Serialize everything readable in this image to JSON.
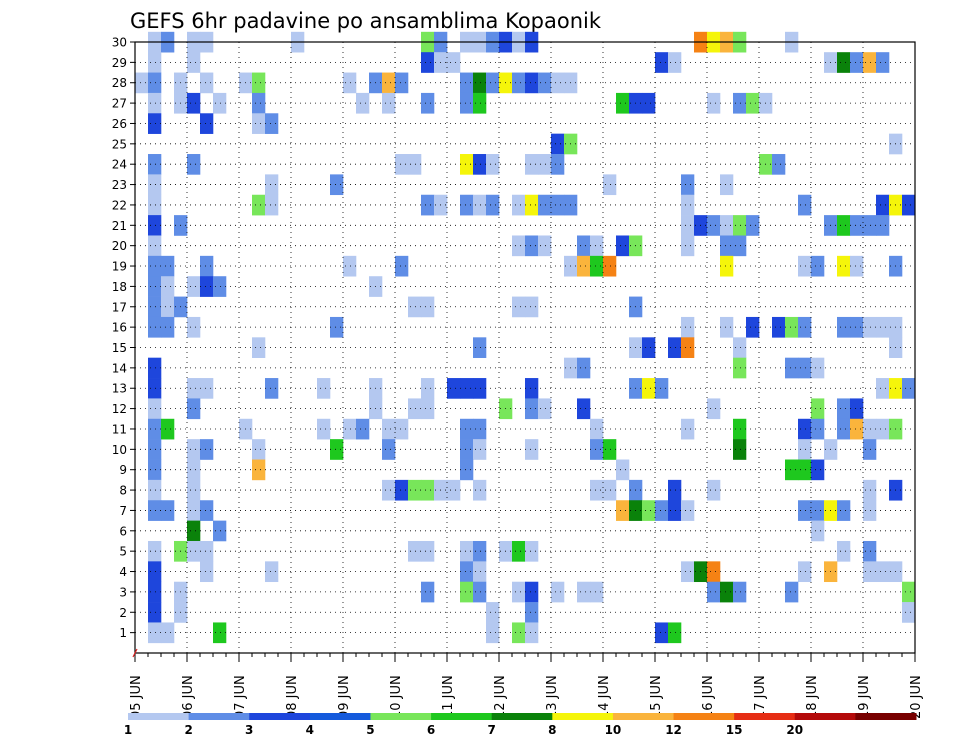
{
  "chart_data": {
    "type": "heatmap",
    "title": "GEFS 6hr padavine po ansamblima Kopaonik",
    "x_tick_labels": [
      "05 JUN",
      "06 JUN",
      "07 JUN",
      "08 JUN",
      "09 JUN",
      "10 JUN",
      "11 JUN",
      "12 JUN",
      "13 JUN",
      "14 JUN",
      "15 JUN",
      "16 JUN",
      "17 JUN",
      "18 JUN",
      "19 JUN",
      "20 JUN"
    ],
    "y_tick_labels": [
      "1",
      "2",
      "3",
      "4",
      "5",
      "6",
      "7",
      "8",
      "9",
      "10",
      "11",
      "12",
      "13",
      "14",
      "15",
      "16",
      "17",
      "18",
      "19",
      "20",
      "21",
      "22",
      "23",
      "24",
      "25",
      "26",
      "27",
      "28",
      "29",
      "30"
    ],
    "time_steps_per_day": 4,
    "n_steps": 60,
    "n_members": 30,
    "grid": "dotted",
    "legend": {
      "position": "bottom",
      "labels": [
        "1",
        "2",
        "3",
        "4",
        "5",
        "6",
        "7",
        "8",
        "10",
        "12",
        "15",
        "20"
      ],
      "colors": [
        "#b4c8f0",
        "#5f8de6",
        "#1e46dc",
        "#145adc",
        "#78e65a",
        "#1ec81e",
        "#0a820a",
        "#f5f50a",
        "#fab43c",
        "#f58214",
        "#e62d14",
        "#b40a0a",
        "#780000"
      ]
    },
    "cells": [
      [
        30,
        1,
        1
      ],
      [
        30,
        2,
        2
      ],
      [
        30,
        4,
        1
      ],
      [
        30,
        5,
        1
      ],
      [
        30,
        12,
        1
      ],
      [
        30,
        22,
        5
      ],
      [
        30,
        23,
        2
      ],
      [
        30,
        25,
        1
      ],
      [
        30,
        26,
        1
      ],
      [
        30,
        27,
        2
      ],
      [
        30,
        28,
        3
      ],
      [
        30,
        29,
        1
      ],
      [
        30,
        30,
        3
      ],
      [
        30,
        43,
        10
      ],
      [
        30,
        44,
        8
      ],
      [
        30,
        45,
        9
      ],
      [
        30,
        46,
        5
      ],
      [
        30,
        50,
        1
      ],
      [
        29,
        1,
        1
      ],
      [
        29,
        4,
        1
      ],
      [
        29,
        22,
        3
      ],
      [
        29,
        23,
        1
      ],
      [
        29,
        24,
        1
      ],
      [
        29,
        40,
        3
      ],
      [
        29,
        41,
        1
      ],
      [
        29,
        53,
        1
      ],
      [
        29,
        54,
        7
      ],
      [
        29,
        55,
        2
      ],
      [
        29,
        56,
        9
      ],
      [
        29,
        57,
        2
      ],
      [
        28,
        0,
        1
      ],
      [
        28,
        1,
        2
      ],
      [
        28,
        3,
        1
      ],
      [
        28,
        5,
        1
      ],
      [
        28,
        8,
        1
      ],
      [
        28,
        9,
        5
      ],
      [
        28,
        16,
        1
      ],
      [
        28,
        18,
        2
      ],
      [
        28,
        19,
        9
      ],
      [
        28,
        20,
        2
      ],
      [
        28,
        25,
        2
      ],
      [
        28,
        26,
        7
      ],
      [
        28,
        27,
        2
      ],
      [
        28,
        28,
        8
      ],
      [
        28,
        29,
        2
      ],
      [
        28,
        30,
        3
      ],
      [
        28,
        31,
        2
      ],
      [
        28,
        32,
        1
      ],
      [
        28,
        33,
        1
      ],
      [
        27,
        1,
        1
      ],
      [
        27,
        3,
        1
      ],
      [
        27,
        4,
        3
      ],
      [
        27,
        6,
        1
      ],
      [
        27,
        9,
        2
      ],
      [
        27,
        17,
        1
      ],
      [
        27,
        19,
        1
      ],
      [
        27,
        22,
        2
      ],
      [
        27,
        25,
        2
      ],
      [
        27,
        26,
        6
      ],
      [
        27,
        37,
        6
      ],
      [
        27,
        38,
        3
      ],
      [
        27,
        39,
        3
      ],
      [
        27,
        44,
        1
      ],
      [
        27,
        46,
        2
      ],
      [
        27,
        47,
        5
      ],
      [
        27,
        48,
        1
      ],
      [
        26,
        1,
        3
      ],
      [
        26,
        5,
        3
      ],
      [
        26,
        9,
        1
      ],
      [
        26,
        10,
        2
      ],
      [
        25,
        32,
        3
      ],
      [
        25,
        33,
        5
      ],
      [
        25,
        58,
        1
      ],
      [
        24,
        1,
        2
      ],
      [
        24,
        4,
        2
      ],
      [
        24,
        20,
        1
      ],
      [
        24,
        21,
        1
      ],
      [
        24,
        25,
        8
      ],
      [
        24,
        26,
        3
      ],
      [
        24,
        27,
        1
      ],
      [
        24,
        30,
        1
      ],
      [
        24,
        31,
        1
      ],
      [
        24,
        32,
        2
      ],
      [
        24,
        48,
        5
      ],
      [
        24,
        49,
        2
      ],
      [
        23,
        1,
        1
      ],
      [
        23,
        10,
        1
      ],
      [
        23,
        15,
        2
      ],
      [
        23,
        36,
        1
      ],
      [
        23,
        42,
        2
      ],
      [
        23,
        45,
        1
      ],
      [
        22,
        1,
        1
      ],
      [
        22,
        9,
        5
      ],
      [
        22,
        10,
        1
      ],
      [
        22,
        22,
        2
      ],
      [
        22,
        23,
        1
      ],
      [
        22,
        25,
        2
      ],
      [
        22,
        26,
        1
      ],
      [
        22,
        27,
        2
      ],
      [
        22,
        29,
        1
      ],
      [
        22,
        30,
        8
      ],
      [
        22,
        31,
        2
      ],
      [
        22,
        32,
        2
      ],
      [
        22,
        33,
        2
      ],
      [
        22,
        42,
        1
      ],
      [
        22,
        51,
        2
      ],
      [
        22,
        57,
        3
      ],
      [
        22,
        58,
        8
      ],
      [
        22,
        59,
        3
      ],
      [
        21,
        1,
        3
      ],
      [
        21,
        3,
        2
      ],
      [
        21,
        42,
        1
      ],
      [
        21,
        43,
        3
      ],
      [
        21,
        44,
        2
      ],
      [
        21,
        45,
        1
      ],
      [
        21,
        46,
        5
      ],
      [
        21,
        47,
        2
      ],
      [
        21,
        53,
        2
      ],
      [
        21,
        54,
        6
      ],
      [
        21,
        55,
        2
      ],
      [
        21,
        56,
        2
      ],
      [
        21,
        57,
        2
      ],
      [
        20,
        1,
        1
      ],
      [
        20,
        29,
        1
      ],
      [
        20,
        30,
        2
      ],
      [
        20,
        31,
        1
      ],
      [
        20,
        34,
        2
      ],
      [
        20,
        35,
        1
      ],
      [
        20,
        37,
        3
      ],
      [
        20,
        38,
        5
      ],
      [
        20,
        42,
        1
      ],
      [
        20,
        45,
        2
      ],
      [
        20,
        46,
        2
      ],
      [
        19,
        1,
        2
      ],
      [
        19,
        2,
        2
      ],
      [
        19,
        5,
        2
      ],
      [
        19,
        16,
        1
      ],
      [
        19,
        20,
        2
      ],
      [
        19,
        33,
        1
      ],
      [
        19,
        34,
        9
      ],
      [
        19,
        35,
        6
      ],
      [
        19,
        36,
        10
      ],
      [
        19,
        45,
        8
      ],
      [
        19,
        51,
        1
      ],
      [
        19,
        52,
        2
      ],
      [
        19,
        54,
        8
      ],
      [
        19,
        55,
        1
      ],
      [
        19,
        58,
        2
      ],
      [
        18,
        1,
        2
      ],
      [
        18,
        2,
        1
      ],
      [
        18,
        4,
        1
      ],
      [
        18,
        5,
        3
      ],
      [
        18,
        6,
        2
      ],
      [
        18,
        18,
        1
      ],
      [
        17,
        1,
        2
      ],
      [
        17,
        2,
        1
      ],
      [
        17,
        3,
        2
      ],
      [
        17,
        21,
        1
      ],
      [
        17,
        22,
        1
      ],
      [
        17,
        29,
        1
      ],
      [
        17,
        30,
        1
      ],
      [
        17,
        38,
        2
      ],
      [
        16,
        1,
        2
      ],
      [
        16,
        2,
        2
      ],
      [
        16,
        4,
        1
      ],
      [
        16,
        15,
        2
      ],
      [
        16,
        42,
        1
      ],
      [
        16,
        45,
        1
      ],
      [
        16,
        47,
        3
      ],
      [
        16,
        49,
        3
      ],
      [
        16,
        50,
        5
      ],
      [
        16,
        51,
        2
      ],
      [
        16,
        54,
        2
      ],
      [
        16,
        55,
        2
      ],
      [
        16,
        56,
        1
      ],
      [
        16,
        57,
        1
      ],
      [
        16,
        58,
        1
      ],
      [
        15,
        9,
        1
      ],
      [
        15,
        26,
        2
      ],
      [
        15,
        38,
        1
      ],
      [
        15,
        39,
        3
      ],
      [
        15,
        41,
        3
      ],
      [
        15,
        42,
        10
      ],
      [
        15,
        46,
        1
      ],
      [
        15,
        58,
        1
      ],
      [
        14,
        1,
        3
      ],
      [
        14,
        33,
        1
      ],
      [
        14,
        34,
        2
      ],
      [
        14,
        46,
        5
      ],
      [
        14,
        50,
        2
      ],
      [
        14,
        51,
        2
      ],
      [
        14,
        52,
        1
      ],
      [
        13,
        1,
        3
      ],
      [
        13,
        4,
        1
      ],
      [
        13,
        5,
        1
      ],
      [
        13,
        10,
        2
      ],
      [
        13,
        14,
        1
      ],
      [
        13,
        18,
        1
      ],
      [
        13,
        22,
        1
      ],
      [
        13,
        24,
        3
      ],
      [
        13,
        25,
        3
      ],
      [
        13,
        26,
        3
      ],
      [
        13,
        30,
        3
      ],
      [
        13,
        38,
        2
      ],
      [
        13,
        39,
        8
      ],
      [
        13,
        40,
        2
      ],
      [
        13,
        57,
        1
      ],
      [
        13,
        58,
        8
      ],
      [
        13,
        59,
        2
      ],
      [
        12,
        1,
        1
      ],
      [
        12,
        4,
        2
      ],
      [
        12,
        18,
        1
      ],
      [
        12,
        21,
        1
      ],
      [
        12,
        22,
        1
      ],
      [
        12,
        28,
        5
      ],
      [
        12,
        30,
        2
      ],
      [
        12,
        31,
        1
      ],
      [
        12,
        34,
        3
      ],
      [
        12,
        44,
        1
      ],
      [
        12,
        52,
        5
      ],
      [
        12,
        54,
        2
      ],
      [
        12,
        55,
        3
      ],
      [
        11,
        1,
        2
      ],
      [
        11,
        2,
        6
      ],
      [
        11,
        8,
        1
      ],
      [
        11,
        14,
        1
      ],
      [
        11,
        16,
        1
      ],
      [
        11,
        17,
        2
      ],
      [
        11,
        19,
        1
      ],
      [
        11,
        20,
        1
      ],
      [
        11,
        25,
        2
      ],
      [
        11,
        26,
        2
      ],
      [
        11,
        35,
        1
      ],
      [
        11,
        42,
        1
      ],
      [
        11,
        46,
        6
      ],
      [
        11,
        51,
        3
      ],
      [
        11,
        52,
        2
      ],
      [
        11,
        54,
        2
      ],
      [
        11,
        55,
        9
      ],
      [
        11,
        56,
        1
      ],
      [
        11,
        57,
        1
      ],
      [
        11,
        58,
        5
      ],
      [
        10,
        1,
        2
      ],
      [
        10,
        4,
        1
      ],
      [
        10,
        5,
        2
      ],
      [
        10,
        9,
        1
      ],
      [
        10,
        15,
        6
      ],
      [
        10,
        19,
        2
      ],
      [
        10,
        25,
        2
      ],
      [
        10,
        26,
        1
      ],
      [
        10,
        30,
        1
      ],
      [
        10,
        35,
        2
      ],
      [
        10,
        36,
        6
      ],
      [
        10,
        46,
        7
      ],
      [
        10,
        51,
        1
      ],
      [
        10,
        53,
        1
      ],
      [
        10,
        56,
        2
      ],
      [
        9,
        1,
        2
      ],
      [
        9,
        4,
        1
      ],
      [
        9,
        9,
        9
      ],
      [
        9,
        25,
        2
      ],
      [
        9,
        37,
        1
      ],
      [
        9,
        50,
        6
      ],
      [
        9,
        51,
        6
      ],
      [
        9,
        52,
        3
      ],
      [
        8,
        1,
        1
      ],
      [
        8,
        4,
        1
      ],
      [
        8,
        19,
        1
      ],
      [
        8,
        20,
        3
      ],
      [
        8,
        21,
        5
      ],
      [
        8,
        22,
        5
      ],
      [
        8,
        23,
        1
      ],
      [
        8,
        24,
        1
      ],
      [
        8,
        26,
        1
      ],
      [
        8,
        35,
        1
      ],
      [
        8,
        36,
        1
      ],
      [
        8,
        38,
        2
      ],
      [
        8,
        41,
        3
      ],
      [
        8,
        44,
        1
      ],
      [
        8,
        56,
        1
      ],
      [
        8,
        58,
        3
      ],
      [
        7,
        1,
        2
      ],
      [
        7,
        2,
        2
      ],
      [
        7,
        4,
        1
      ],
      [
        7,
        5,
        2
      ],
      [
        7,
        37,
        9
      ],
      [
        7,
        38,
        7
      ],
      [
        7,
        39,
        5
      ],
      [
        7,
        40,
        2
      ],
      [
        7,
        41,
        3
      ],
      [
        7,
        42,
        1
      ],
      [
        7,
        51,
        2
      ],
      [
        7,
        52,
        2
      ],
      [
        7,
        53,
        8
      ],
      [
        7,
        54,
        2
      ],
      [
        7,
        56,
        1
      ],
      [
        6,
        4,
        7
      ],
      [
        6,
        6,
        2
      ],
      [
        6,
        52,
        1
      ],
      [
        5,
        1,
        1
      ],
      [
        5,
        3,
        5
      ],
      [
        5,
        4,
        1
      ],
      [
        5,
        5,
        1
      ],
      [
        5,
        21,
        1
      ],
      [
        5,
        22,
        1
      ],
      [
        5,
        25,
        1
      ],
      [
        5,
        26,
        2
      ],
      [
        5,
        28,
        1
      ],
      [
        5,
        29,
        6
      ],
      [
        5,
        30,
        1
      ],
      [
        5,
        54,
        1
      ],
      [
        5,
        56,
        2
      ],
      [
        4,
        1,
        3
      ],
      [
        4,
        5,
        1
      ],
      [
        4,
        10,
        1
      ],
      [
        4,
        25,
        2
      ],
      [
        4,
        26,
        1
      ],
      [
        4,
        42,
        1
      ],
      [
        4,
        43,
        7
      ],
      [
        4,
        44,
        10
      ],
      [
        4,
        51,
        1
      ],
      [
        4,
        53,
        9
      ],
      [
        4,
        56,
        1
      ],
      [
        4,
        57,
        1
      ],
      [
        4,
        58,
        1
      ],
      [
        3,
        1,
        3
      ],
      [
        3,
        3,
        1
      ],
      [
        3,
        22,
        2
      ],
      [
        3,
        25,
        5
      ],
      [
        3,
        26,
        2
      ],
      [
        3,
        29,
        1
      ],
      [
        3,
        30,
        3
      ],
      [
        3,
        32,
        1
      ],
      [
        3,
        34,
        1
      ],
      [
        3,
        35,
        1
      ],
      [
        3,
        44,
        2
      ],
      [
        3,
        45,
        7
      ],
      [
        3,
        46,
        2
      ],
      [
        3,
        50,
        2
      ],
      [
        3,
        59,
        5
      ],
      [
        2,
        1,
        3
      ],
      [
        2,
        3,
        1
      ],
      [
        2,
        27,
        1
      ],
      [
        2,
        30,
        2
      ],
      [
        2,
        59,
        1
      ],
      [
        1,
        1,
        1
      ],
      [
        1,
        2,
        1
      ],
      [
        1,
        6,
        6
      ],
      [
        1,
        27,
        1
      ],
      [
        1,
        29,
        5
      ],
      [
        1,
        30,
        1
      ],
      [
        1,
        40,
        3
      ],
      [
        1,
        41,
        6
      ]
    ]
  }
}
